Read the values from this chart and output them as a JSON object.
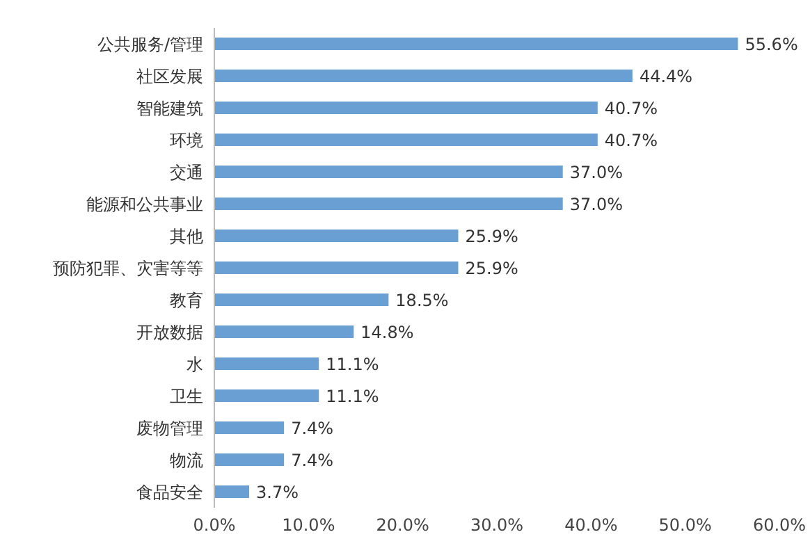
{
  "chart_data": {
    "type": "bar",
    "orientation": "horizontal",
    "categories": [
      "公共服务/管理",
      "社区发展",
      "智能建筑",
      "环境",
      "交通",
      "能源和公共事业",
      "其他",
      "预防犯罪、灾害等等",
      "教育",
      "开放数据",
      "水",
      "卫生",
      "废物管理",
      "物流",
      "食品安全"
    ],
    "values": [
      55.6,
      44.4,
      40.7,
      40.7,
      37.0,
      37.0,
      25.9,
      25.9,
      18.5,
      14.8,
      11.1,
      11.1,
      7.4,
      7.4,
      3.7
    ],
    "value_labels": [
      "55.6%",
      "44.4%",
      "40.7%",
      "40.7%",
      "37.0%",
      "37.0%",
      "25.9%",
      "25.9%",
      "18.5%",
      "14.8%",
      "11.1%",
      "11.1%",
      "7.4%",
      "7.4%",
      "3.7%"
    ],
    "color": "#6a9fd4",
    "xlim": [
      0,
      60
    ],
    "xticks": [
      {
        "value": 0,
        "label": "0.0%"
      },
      {
        "value": 10,
        "label": "10.0%"
      },
      {
        "value": 20,
        "label": "20.0%"
      },
      {
        "value": 30,
        "label": "30.0%"
      },
      {
        "value": 40,
        "label": "40.0%"
      },
      {
        "value": 50,
        "label": "50.0%"
      },
      {
        "value": 60,
        "label": "60.0%"
      }
    ],
    "grid": false,
    "legend": false
  }
}
